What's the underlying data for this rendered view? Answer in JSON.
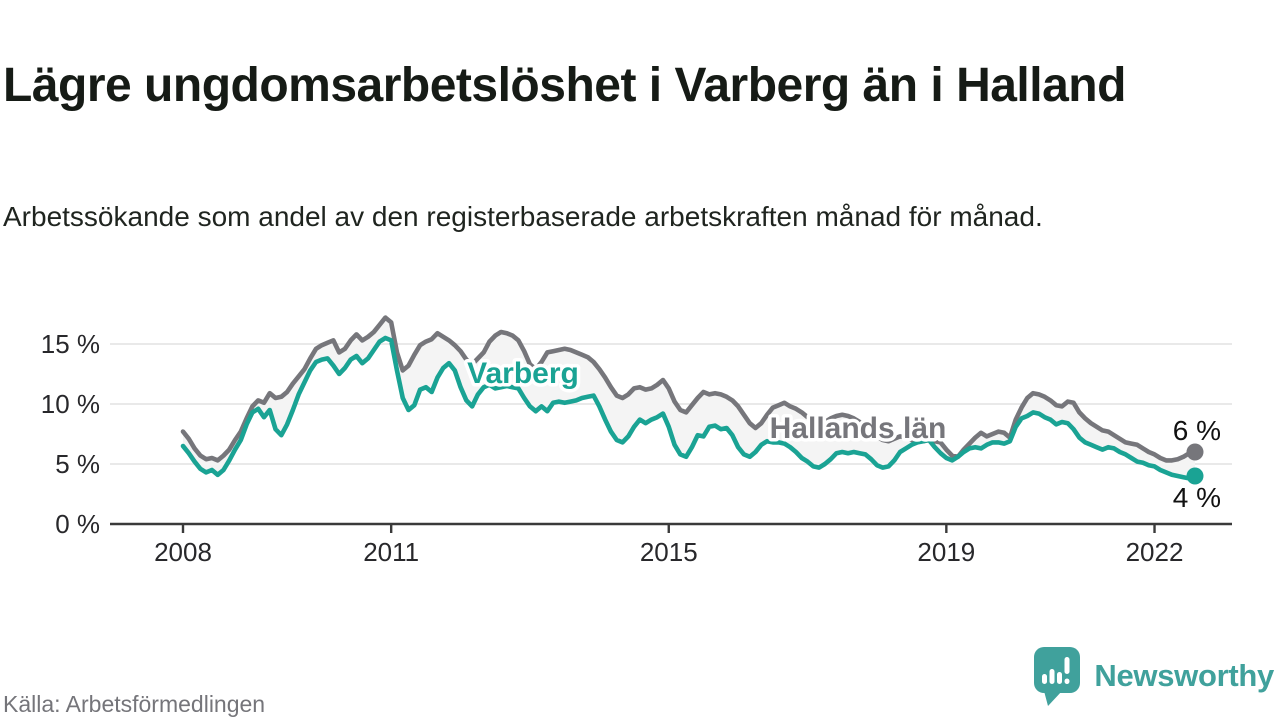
{
  "header": {
    "title": "Lägre ungdomsarbetslöshet i Varberg än i Halland",
    "subtitle": "Arbetssökande som andel av den registerbaserade arbetskraften månad för månad."
  },
  "source": {
    "label": "Källa: Arbetsförmedlingen"
  },
  "branding": {
    "name": "Newsworthy",
    "color": "#40a19c",
    "icon": "speech-bubble-bar-chart"
  },
  "chart_data": {
    "type": "line",
    "title": "Lägre ungdomsarbetslöshet i Varberg än i Halland",
    "x_start": "2008-01",
    "x_end": "2022-08",
    "frequency": "monthly",
    "x_tick_labels": [
      "2008",
      "2011",
      "2015",
      "2019",
      "2022"
    ],
    "x_tick_years": [
      2008,
      2011,
      2015,
      2019,
      2022
    ],
    "y_tick_labels": [
      "0 %",
      "5 %",
      "10 %",
      "15 %"
    ],
    "y_tick_values": [
      0,
      5,
      10,
      15
    ],
    "ylim": [
      0,
      18
    ],
    "grid": true,
    "legend": "inline-labels",
    "band_fill": "#f4f4f4",
    "gridline_color": "#e2e2e2",
    "axis_color": "#3a3a3a",
    "series": [
      {
        "name": "Hallands län",
        "color": "#76767b",
        "end_label": "6 %",
        "end_value": 6,
        "values": [
          7.7,
          7.1,
          6.3,
          5.7,
          5.4,
          5.5,
          5.3,
          5.7,
          6.2,
          7.0,
          7.7,
          8.8,
          9.8,
          10.3,
          10.1,
          10.9,
          10.5,
          10.6,
          11.0,
          11.7,
          12.3,
          12.9,
          13.8,
          14.6,
          14.9,
          15.1,
          15.3,
          14.3,
          14.6,
          15.3,
          15.8,
          15.3,
          15.6,
          16.0,
          16.6,
          17.2,
          16.8,
          14.3,
          12.8,
          13.2,
          14.1,
          14.9,
          15.2,
          15.4,
          15.9,
          15.6,
          15.3,
          14.9,
          14.4,
          13.7,
          13.3,
          13.8,
          14.3,
          15.2,
          15.7,
          16.0,
          15.9,
          15.7,
          15.3,
          14.4,
          13.3,
          12.9,
          13.5,
          14.3,
          14.4,
          14.5,
          14.6,
          14.5,
          14.3,
          14.1,
          13.9,
          13.5,
          12.9,
          12.2,
          11.4,
          10.7,
          10.5,
          10.8,
          11.3,
          11.4,
          11.2,
          11.3,
          11.6,
          12.0,
          11.3,
          10.2,
          9.5,
          9.3,
          9.9,
          10.5,
          11.0,
          10.8,
          10.9,
          10.8,
          10.6,
          10.3,
          9.8,
          9.1,
          8.4,
          8.0,
          8.4,
          9.1,
          9.7,
          9.9,
          10.1,
          9.8,
          9.6,
          9.3,
          8.9,
          8.6,
          8.4,
          8.5,
          8.8,
          9.0,
          9.1,
          9.0,
          8.8,
          8.5,
          8.2,
          7.8,
          7.3,
          7.0,
          6.9,
          7.1,
          7.3,
          7.2,
          7.0,
          6.9,
          6.9,
          7.0,
          6.9,
          6.8,
          6.2,
          5.7,
          5.6,
          6.2,
          6.7,
          7.2,
          7.6,
          7.3,
          7.5,
          7.7,
          7.6,
          7.2,
          8.7,
          9.7,
          10.5,
          10.9,
          10.8,
          10.6,
          10.3,
          9.9,
          9.8,
          10.2,
          10.1,
          9.3,
          8.8,
          8.4,
          8.1,
          7.8,
          7.7,
          7.4,
          7.1,
          6.8,
          6.7,
          6.6,
          6.3,
          6.0,
          5.8,
          5.5,
          5.3,
          5.3,
          5.4,
          5.6,
          5.9,
          6.0
        ]
      },
      {
        "name": "Varberg",
        "color": "#1aa394",
        "end_label": "4 %",
        "end_value": 4,
        "values": [
          6.5,
          5.9,
          5.2,
          4.6,
          4.3,
          4.5,
          4.1,
          4.5,
          5.3,
          6.2,
          7.0,
          8.3,
          9.3,
          9.6,
          8.9,
          9.5,
          7.9,
          7.4,
          8.3,
          9.5,
          10.8,
          11.8,
          12.8,
          13.5,
          13.7,
          13.8,
          13.2,
          12.5,
          13.0,
          13.7,
          14.0,
          13.4,
          13.8,
          14.5,
          15.2,
          15.5,
          15.3,
          12.8,
          10.5,
          9.5,
          9.9,
          11.2,
          11.4,
          11.0,
          12.2,
          13.0,
          13.4,
          12.8,
          11.4,
          10.3,
          9.8,
          10.8,
          11.4,
          11.6,
          11.3,
          11.4,
          11.5,
          11.4,
          11.3,
          10.5,
          9.8,
          9.4,
          9.8,
          9.4,
          10.1,
          10.2,
          10.1,
          10.2,
          10.3,
          10.5,
          10.6,
          10.7,
          9.8,
          8.7,
          7.7,
          7.0,
          6.8,
          7.3,
          8.1,
          8.7,
          8.4,
          8.7,
          8.9,
          9.2,
          8.1,
          6.6,
          5.8,
          5.6,
          6.4,
          7.4,
          7.3,
          8.1,
          8.2,
          7.9,
          8.0,
          7.4,
          6.4,
          5.8,
          5.6,
          6.0,
          6.6,
          6.9,
          6.8,
          6.8,
          6.7,
          6.4,
          6.0,
          5.5,
          5.2,
          4.8,
          4.7,
          5.0,
          5.4,
          5.9,
          6.0,
          5.9,
          6.0,
          5.9,
          5.8,
          5.4,
          4.9,
          4.7,
          4.8,
          5.3,
          6.0,
          6.3,
          6.6,
          6.8,
          6.9,
          7.0,
          6.4,
          5.9,
          5.5,
          5.3,
          5.6,
          6.0,
          6.3,
          6.4,
          6.3,
          6.6,
          6.8,
          6.8,
          6.7,
          6.9,
          8.1,
          8.8,
          9.0,
          9.3,
          9.2,
          8.9,
          8.7,
          8.3,
          8.5,
          8.4,
          7.9,
          7.2,
          6.8,
          6.6,
          6.4,
          6.2,
          6.4,
          6.3,
          6.0,
          5.8,
          5.5,
          5.2,
          5.1,
          4.9,
          4.8,
          4.5,
          4.3,
          4.1,
          4.0,
          3.9,
          3.8,
          4.0
        ]
      }
    ]
  }
}
